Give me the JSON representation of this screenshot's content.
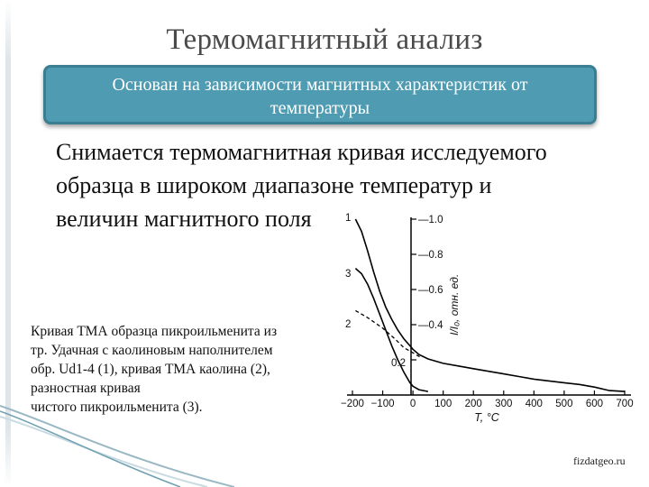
{
  "title": "Термомагнитный анализ",
  "callout": {
    "line1": "Основан на зависимости магнитных характеристик от",
    "line2": "температуры"
  },
  "body": {
    "line1": "Снимается термомагнитная кривая исследуемого",
    "line2": "образца в широком диапазоне температур и",
    "line3": "величин магнитного поля"
  },
  "caption": {
    "line1": "Кривая ТМА образца пикроильменита из",
    "line2": "тр. Удачная с каолиновым наполнителем",
    "line3": "обр. Ud1-4 (1), кривая ТМА каолина (2),",
    "line4": "разностная кривая",
    "line5": "чистого пикроильменита (3)."
  },
  "credit": "fizdatgeo.ru",
  "chart_data": {
    "type": "line",
    "xlabel": "T, °C",
    "ylabel": "I/I₀, отн. ед.",
    "x_ticks": [
      -200,
      -100,
      0,
      100,
      200,
      300,
      400,
      500,
      600,
      700
    ],
    "x_tick_labels": [
      "−200",
      "−100",
      "0",
      "100",
      "200",
      "300",
      "400",
      "500",
      "600",
      "700"
    ],
    "y_ticks": [
      0.2,
      0.4,
      0.6,
      0.8,
      1.0
    ],
    "y_tick_labels": [
      "0.2",
      "0.4",
      "0.6",
      "0.8",
      "1.0"
    ],
    "xlim": [
      -200,
      700
    ],
    "ylim": [
      0,
      1.0
    ],
    "grid": false,
    "series": [
      {
        "name": "1",
        "style": "solid",
        "x": [
          -190,
          -170,
          -150,
          -130,
          -110,
          -90,
          -70,
          -50,
          -30,
          -10,
          0,
          20,
          50,
          100,
          150,
          200,
          250,
          300,
          350,
          400,
          450,
          500,
          550,
          600,
          650,
          700
        ],
        "y": [
          1.0,
          0.93,
          0.82,
          0.7,
          0.59,
          0.5,
          0.43,
          0.37,
          0.32,
          0.28,
          0.26,
          0.23,
          0.205,
          0.18,
          0.165,
          0.15,
          0.135,
          0.12,
          0.105,
          0.09,
          0.08,
          0.07,
          0.06,
          0.045,
          0.025,
          0.02
        ]
      },
      {
        "name": "2",
        "style": "dashed",
        "x": [
          -190,
          -150,
          -100,
          -60,
          -30,
          0,
          30
        ],
        "y": [
          0.48,
          0.44,
          0.38,
          0.32,
          0.27,
          0.24,
          0.21
        ]
      },
      {
        "name": "3",
        "style": "solid",
        "x": [
          -190,
          -170,
          -150,
          -130,
          -110,
          -90,
          -70,
          -50,
          -30,
          -10,
          0,
          20,
          50
        ],
        "y": [
          0.72,
          0.69,
          0.63,
          0.55,
          0.46,
          0.37,
          0.28,
          0.2,
          0.13,
          0.07,
          0.05,
          0.03,
          0.02
        ]
      }
    ]
  }
}
